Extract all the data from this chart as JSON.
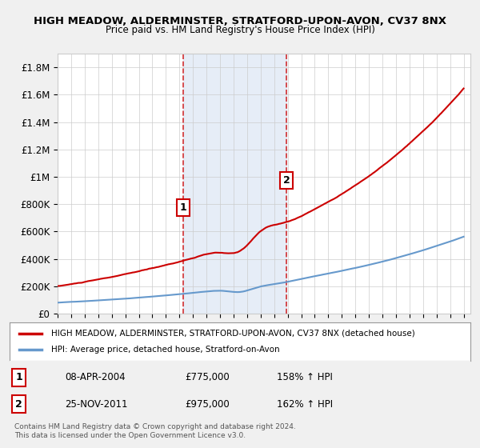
{
  "title": "HIGH MEADOW, ALDERMINSTER, STRATFORD-UPON-AVON, CV37 8NX",
  "subtitle": "Price paid vs. HM Land Registry's House Price Index (HPI)",
  "ylim": [
    0,
    1900000
  ],
  "yticks": [
    0,
    200000,
    400000,
    600000,
    800000,
    1000000,
    1200000,
    1400000,
    1600000,
    1800000
  ],
  "ytick_labels": [
    "£0",
    "£200K",
    "£400K",
    "£600K",
    "£800K",
    "£1M",
    "£1.2M",
    "£1.4M",
    "£1.6M",
    "£1.8M"
  ],
  "sale1_date": 2004.27,
  "sale1_price": 775000,
  "sale1_label": "1",
  "sale2_date": 2011.9,
  "sale2_price": 975000,
  "sale2_label": "2",
  "line_color_property": "#cc0000",
  "line_color_hpi": "#6699cc",
  "background_color": "#dce6f5",
  "plot_bg_color": "#ffffff",
  "legend_entry1": "HIGH MEADOW, ALDERMINSTER, STRATFORD-UPON-AVON, CV37 8NX (detached house)",
  "legend_entry2": "HPI: Average price, detached house, Stratford-on-Avon",
  "table_row1": [
    "1",
    "08-APR-2004",
    "£775,000",
    "158% ↑ HPI"
  ],
  "table_row2": [
    "2",
    "25-NOV-2011",
    "£975,000",
    "162% ↑ HPI"
  ],
  "footer": "Contains HM Land Registry data © Crown copyright and database right 2024.\nThis data is licensed under the Open Government Licence v3.0."
}
